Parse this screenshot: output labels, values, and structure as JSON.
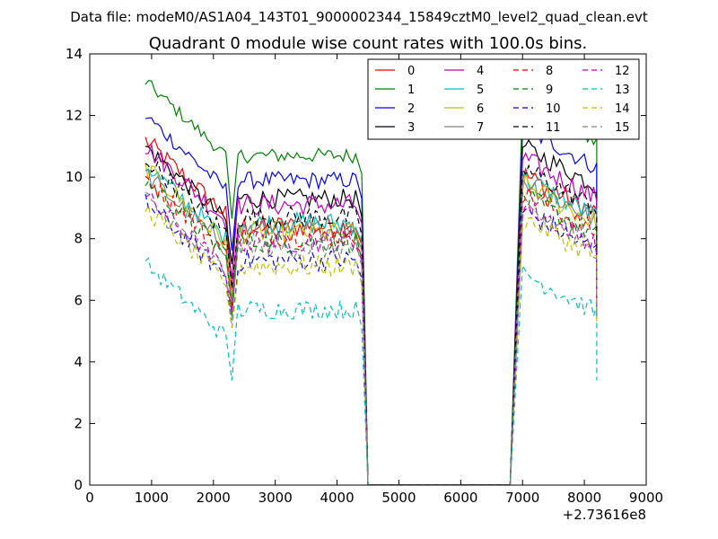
{
  "figure": {
    "suptitle": "Data file: modeM0/AS1A04_143T01_9000002344_15849cztM0_level2_quad_clean.evt",
    "offset_label": "+2.73616e8"
  },
  "chart_data": {
    "type": "line",
    "title": "Quadrant 0 module wise count rates with 100.0s bins.",
    "xlabel": "",
    "ylabel": "",
    "xlim": [
      0,
      9000
    ],
    "ylim": [
      0,
      14
    ],
    "xticks": [
      0,
      1000,
      2000,
      3000,
      4000,
      5000,
      6000,
      7000,
      8000,
      9000
    ],
    "yticks": [
      0,
      2,
      4,
      6,
      8,
      10,
      12,
      14
    ],
    "x_offset": 273616000,
    "legend_position": "top-right",
    "segments": [
      {
        "name": "seg1",
        "x_start": 900,
        "x_end": 2200
      },
      {
        "name": "seg2",
        "x_start": 2400,
        "x_end": 4300
      },
      {
        "name": "seg3",
        "x_start": 7000,
        "x_end": 8200
      }
    ],
    "series": [
      {
        "name": "0",
        "color": "#ff0000",
        "style": "solid",
        "level": [
          11.2,
          8.4,
          10.1
        ],
        "noise": 0.45
      },
      {
        "name": "1",
        "color": "#008000",
        "style": "solid",
        "level": [
          13.1,
          10.7,
          12.4
        ],
        "noise": 0.3
      },
      {
        "name": "2",
        "color": "#0000ff",
        "style": "solid",
        "level": [
          12.0,
          9.9,
          11.6
        ],
        "noise": 0.35
      },
      {
        "name": "3",
        "color": "#000000",
        "style": "solid",
        "level": [
          11.0,
          9.3,
          11.0
        ],
        "noise": 0.4
      },
      {
        "name": "4",
        "color": "#bf00bf",
        "style": "solid",
        "level": [
          11.0,
          9.1,
          10.6
        ],
        "noise": 0.45
      },
      {
        "name": "5",
        "color": "#00bfbf",
        "style": "solid",
        "level": [
          10.4,
          8.5,
          10.0
        ],
        "noise": 0.45
      },
      {
        "name": "6",
        "color": "#bfbf00",
        "style": "solid",
        "level": [
          10.3,
          8.2,
          9.8
        ],
        "noise": 0.45
      },
      {
        "name": "7",
        "color": "#808080",
        "style": "solid",
        "level": [
          10.1,
          8.3,
          9.9
        ],
        "noise": 0.45
      },
      {
        "name": "8",
        "color": "#ff0000",
        "style": "dashed",
        "level": [
          10.0,
          8.1,
          9.5
        ],
        "noise": 0.45
      },
      {
        "name": "9",
        "color": "#008000",
        "style": "dashed",
        "level": [
          9.9,
          7.9,
          9.4
        ],
        "noise": 0.45
      },
      {
        "name": "10",
        "color": "#0000ff",
        "style": "dashed",
        "level": [
          9.2,
          7.3,
          8.9
        ],
        "noise": 0.45
      },
      {
        "name": "11",
        "color": "#000000",
        "style": "dashed",
        "level": [
          10.6,
          8.7,
          10.3
        ],
        "noise": 0.45
      },
      {
        "name": "12",
        "color": "#bf00bf",
        "style": "dashed",
        "level": [
          9.4,
          7.9,
          9.1
        ],
        "noise": 0.45
      },
      {
        "name": "13",
        "color": "#00bfbf",
        "style": "dashed",
        "level": [
          7.2,
          5.7,
          6.9
        ],
        "noise": 0.4
      },
      {
        "name": "14",
        "color": "#bfbf00",
        "style": "dashed",
        "level": [
          9.0,
          7.1,
          8.7
        ],
        "noise": 0.45
      },
      {
        "name": "15",
        "color": "#808080",
        "style": "dashed",
        "level": [
          9.3,
          7.7,
          9.0
        ],
        "noise": 0.45
      }
    ]
  }
}
